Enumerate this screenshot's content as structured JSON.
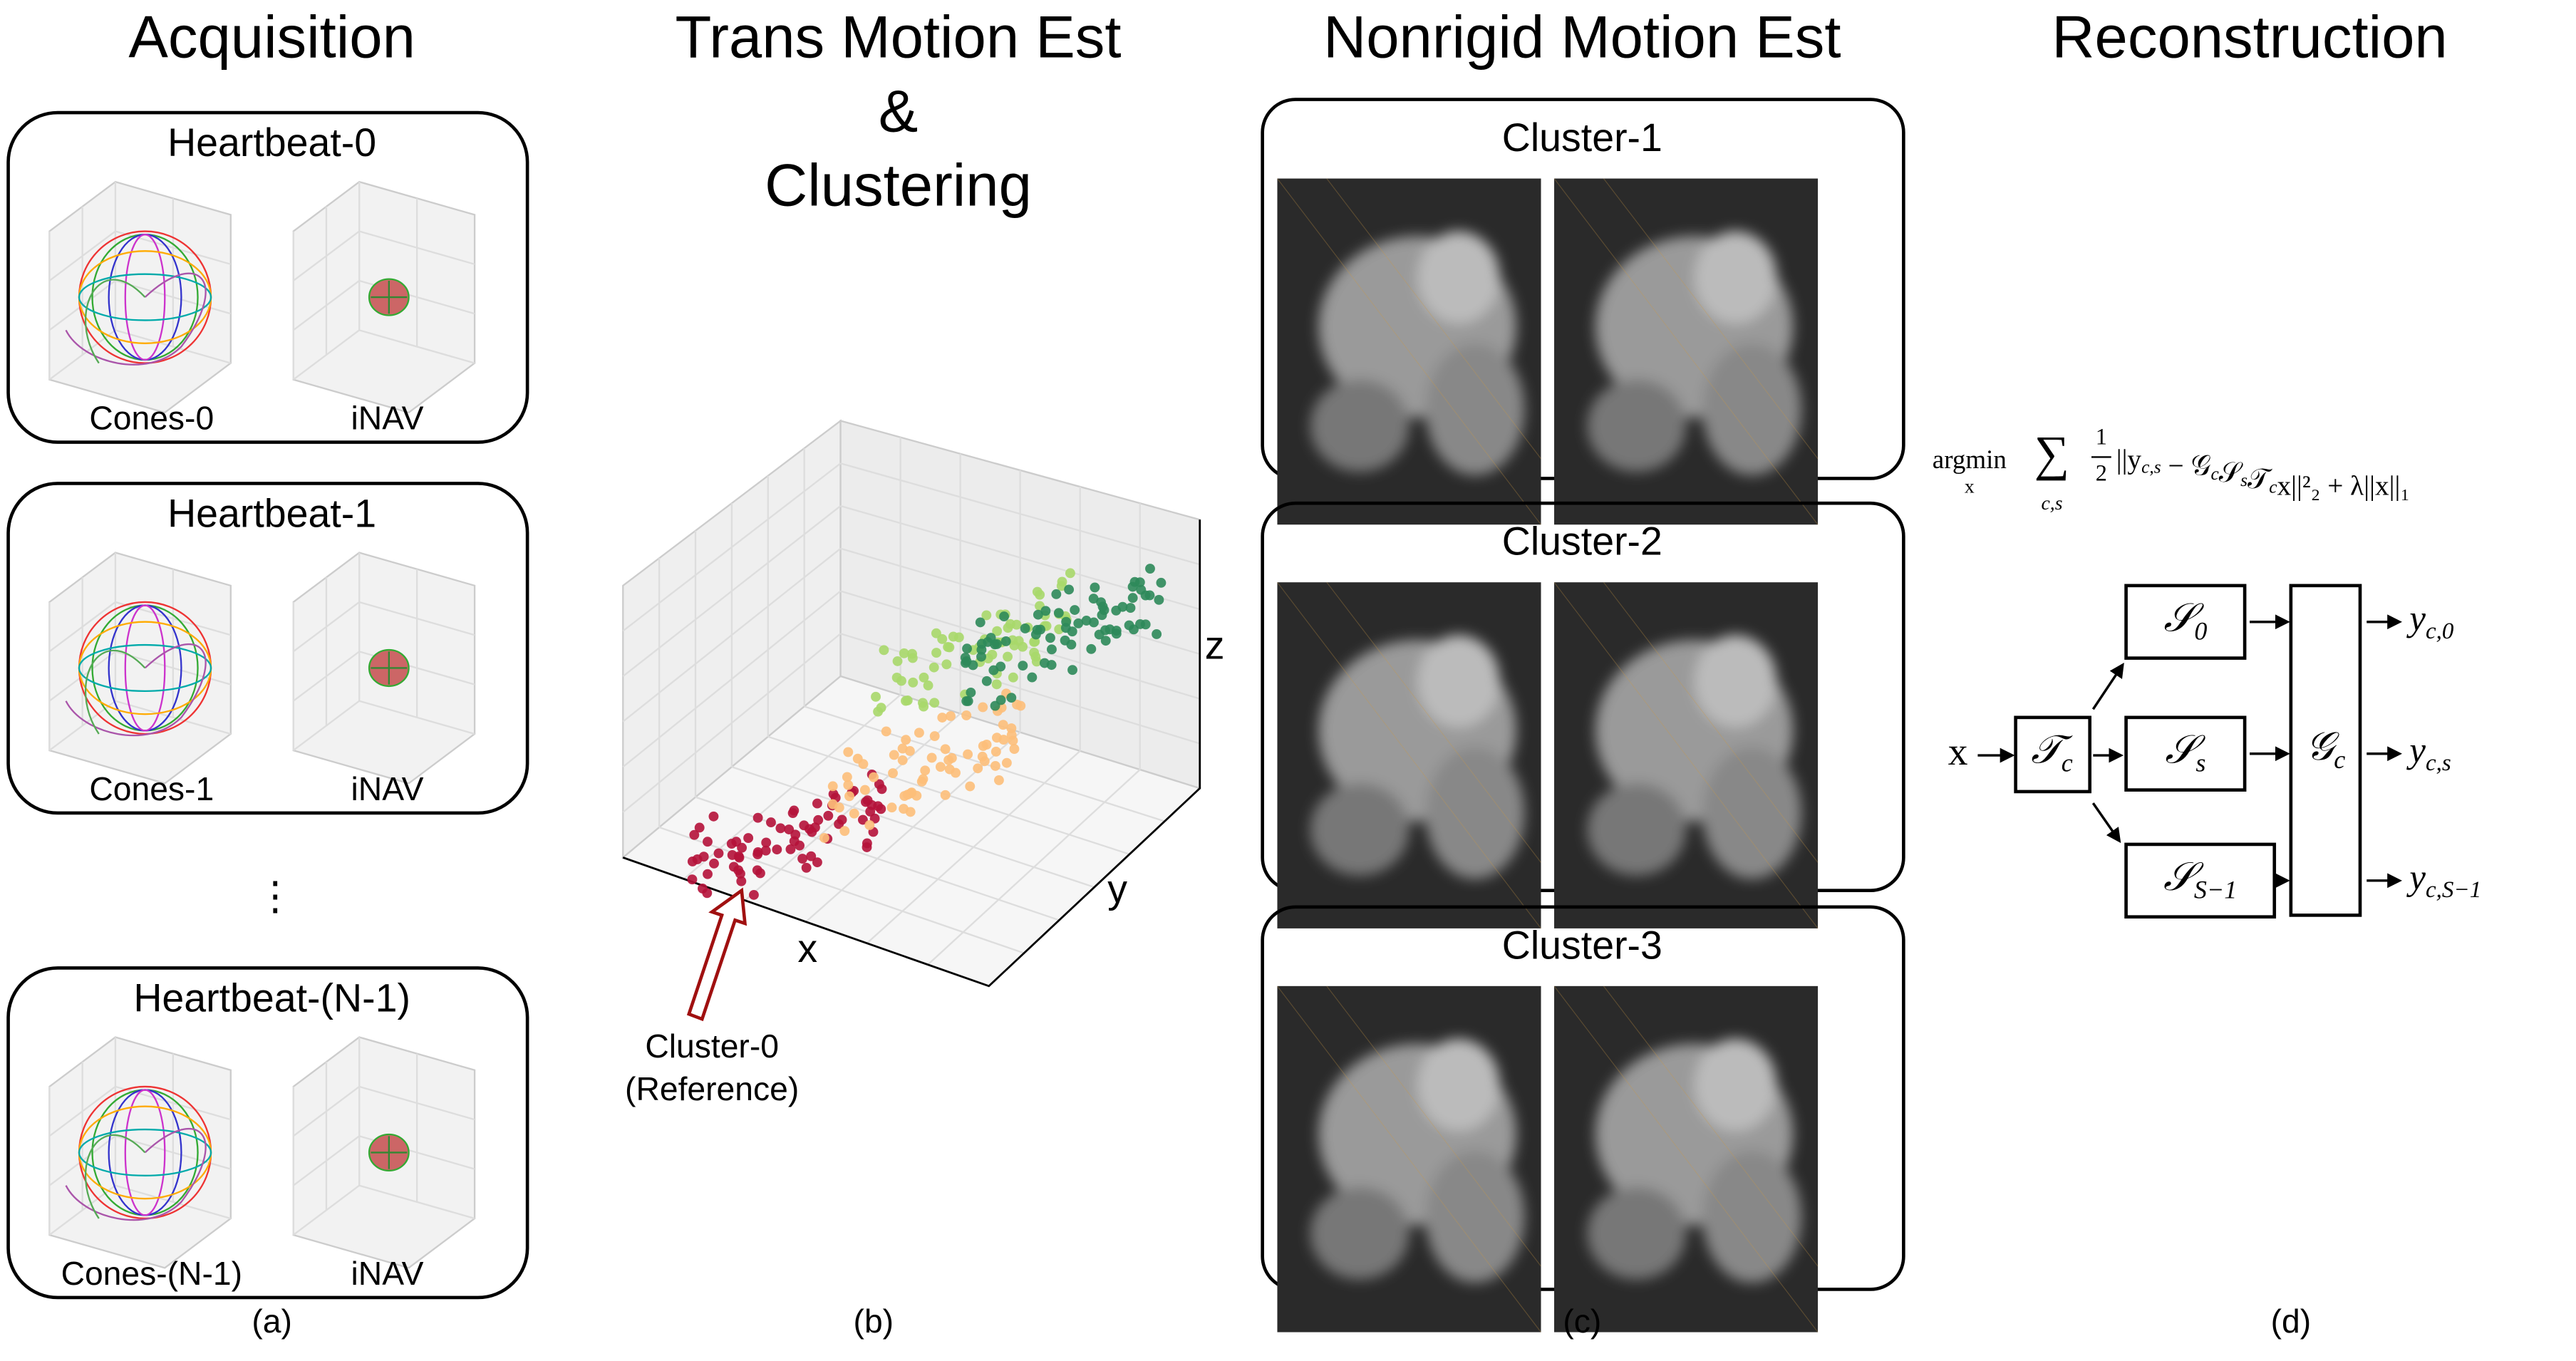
{
  "panels": [
    {
      "title": "Acquisition",
      "caption": "(a)",
      "ellipsis": "⋮",
      "boxes": [
        {
          "title": "Heartbeat-0",
          "labels": [
            "Cones-0",
            "iNAV"
          ]
        },
        {
          "title": "Heartbeat-1",
          "labels": [
            "Cones-1",
            "iNAV"
          ]
        },
        {
          "title": "Heartbeat-(N-1)",
          "labels": [
            "Cones-(N-1)",
            "iNAV"
          ]
        }
      ]
    },
    {
      "title_lines": [
        "Trans Motion Est",
        "&",
        "Clustering"
      ],
      "caption": "(b)",
      "axes": [
        "x",
        "y",
        "z"
      ],
      "annotation_lines": [
        "Cluster-0",
        "(Reference)"
      ]
    },
    {
      "title": "Nonrigid Motion Est",
      "caption": "(c)",
      "boxes": [
        "Cluster-1",
        "Cluster-2",
        "Cluster-3"
      ]
    },
    {
      "title": "Reconstruction",
      "caption": "(d)",
      "equation": {
        "op": "argmin",
        "op_sub": "x",
        "sum": "∑",
        "sum_sub": "c,s",
        "num": "1",
        "den": "2",
        "terms": [
          [
            "||y",
            "c,s"
          ],
          [
            " − 𝒢",
            "c"
          ],
          [
            "𝒮",
            "s"
          ],
          [
            "𝒯",
            "c"
          ],
          [
            "x||",
            ""
          ],
          [
            "²",
            ""
          ],
          [
            "₂",
            ""
          ],
          [
            " + λ||x||",
            ""
          ],
          [
            "₁",
            ""
          ]
        ]
      },
      "diagram": {
        "input": "x",
        "transform": {
          "base": "𝒯",
          "sub": "c"
        },
        "samplers": [
          {
            "base": "𝒮",
            "sub": "0"
          },
          {
            "base": "𝒮",
            "sub": "s"
          },
          {
            "base": "𝒮",
            "sub": "S−1"
          }
        ],
        "coil": {
          "base": "𝒢",
          "sub": "c"
        },
        "outputs": [
          {
            "base": "y",
            "sub": "c,0"
          },
          {
            "base": "y",
            "sub": "c,s"
          },
          {
            "base": "y",
            "sub": "c,S−1"
          }
        ]
      }
    }
  ]
}
